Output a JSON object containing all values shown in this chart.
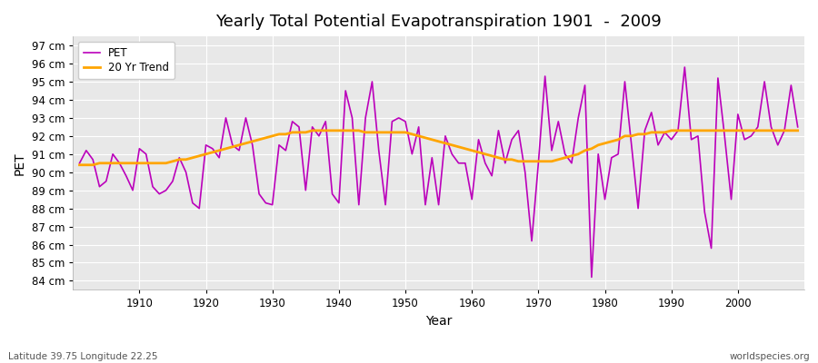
{
  "title": "Yearly Total Potential Evapotranspiration 1901  -  2009",
  "xlabel": "Year",
  "ylabel": "PET",
  "subtitle": "Latitude 39.75 Longitude 22.25",
  "watermark": "worldspecies.org",
  "pet_color": "#BB00BB",
  "trend_color": "#FFA500",
  "background_color": "#E8E8E8",
  "grid_color": "#FFFFFF",
  "ylim": [
    83.5,
    97.5
  ],
  "yticks": [
    84,
    85,
    86,
    87,
    88,
    89,
    90,
    91,
    92,
    93,
    94,
    95,
    96,
    97
  ],
  "years": [
    1901,
    1902,
    1903,
    1904,
    1905,
    1906,
    1907,
    1908,
    1909,
    1910,
    1911,
    1912,
    1913,
    1914,
    1915,
    1916,
    1917,
    1918,
    1919,
    1920,
    1921,
    1922,
    1923,
    1924,
    1925,
    1926,
    1927,
    1928,
    1929,
    1930,
    1931,
    1932,
    1933,
    1934,
    1935,
    1936,
    1937,
    1938,
    1939,
    1940,
    1941,
    1942,
    1943,
    1944,
    1945,
    1946,
    1947,
    1948,
    1949,
    1950,
    1951,
    1952,
    1953,
    1954,
    1955,
    1956,
    1957,
    1958,
    1959,
    1960,
    1961,
    1962,
    1963,
    1964,
    1965,
    1966,
    1967,
    1968,
    1969,
    1970,
    1971,
    1972,
    1973,
    1974,
    1975,
    1976,
    1977,
    1978,
    1979,
    1980,
    1981,
    1982,
    1983,
    1984,
    1985,
    1986,
    1987,
    1988,
    1989,
    1990,
    1991,
    1992,
    1993,
    1994,
    1995,
    1996,
    1997,
    1998,
    1999,
    2000,
    2001,
    2002,
    2003,
    2004,
    2005,
    2006,
    2007,
    2008,
    2009
  ],
  "pet_values": [
    90.5,
    91.2,
    90.7,
    89.2,
    89.5,
    91.0,
    90.5,
    89.8,
    89.0,
    91.3,
    91.0,
    89.2,
    88.8,
    89.0,
    89.5,
    90.8,
    90.0,
    88.3,
    88.0,
    91.5,
    91.3,
    90.8,
    93.0,
    91.5,
    91.2,
    93.0,
    91.5,
    88.8,
    88.3,
    88.2,
    91.5,
    91.2,
    92.8,
    92.5,
    89.0,
    92.5,
    92.0,
    92.8,
    88.8,
    88.3,
    94.5,
    93.0,
    88.2,
    93.0,
    95.0,
    91.2,
    88.2,
    92.8,
    93.0,
    92.8,
    91.0,
    92.5,
    88.2,
    90.8,
    88.2,
    92.0,
    91.0,
    90.5,
    90.5,
    88.5,
    91.8,
    90.5,
    89.8,
    92.3,
    90.5,
    91.8,
    92.3,
    90.0,
    86.2,
    90.5,
    95.3,
    91.2,
    92.8,
    91.0,
    90.5,
    93.0,
    94.8,
    84.2,
    91.0,
    88.5,
    90.8,
    91.0,
    95.0,
    91.5,
    88.0,
    92.3,
    93.3,
    91.5,
    92.2,
    91.8,
    92.3,
    95.8,
    91.8,
    92.0,
    87.8,
    85.8,
    95.2,
    92.0,
    88.5,
    93.2,
    91.8,
    92.0,
    92.5,
    95.0,
    92.5,
    91.5,
    92.3,
    94.8,
    92.5
  ],
  "trend_values": [
    90.4,
    90.4,
    90.4,
    90.5,
    90.5,
    90.5,
    90.5,
    90.5,
    90.5,
    90.5,
    90.5,
    90.5,
    90.5,
    90.5,
    90.6,
    90.7,
    90.7,
    90.8,
    90.9,
    91.0,
    91.1,
    91.2,
    91.3,
    91.4,
    91.5,
    91.6,
    91.7,
    91.8,
    91.9,
    92.0,
    92.1,
    92.1,
    92.2,
    92.2,
    92.2,
    92.3,
    92.3,
    92.3,
    92.3,
    92.3,
    92.3,
    92.3,
    92.3,
    92.2,
    92.2,
    92.2,
    92.2,
    92.2,
    92.2,
    92.2,
    92.1,
    92.0,
    91.9,
    91.8,
    91.7,
    91.6,
    91.5,
    91.4,
    91.3,
    91.2,
    91.1,
    91.0,
    90.9,
    90.8,
    90.7,
    90.7,
    90.6,
    90.6,
    90.6,
    90.6,
    90.6,
    90.6,
    90.7,
    90.8,
    90.9,
    91.0,
    91.2,
    91.3,
    91.5,
    91.6,
    91.7,
    91.8,
    92.0,
    92.0,
    92.1,
    92.1,
    92.2,
    92.2,
    92.2,
    92.3,
    92.3,
    92.3,
    92.3,
    92.3,
    92.3,
    92.3,
    92.3,
    92.3,
    92.3,
    92.3,
    92.3,
    92.3,
    92.3,
    92.3,
    92.3,
    92.3,
    92.3,
    92.3,
    92.3
  ]
}
